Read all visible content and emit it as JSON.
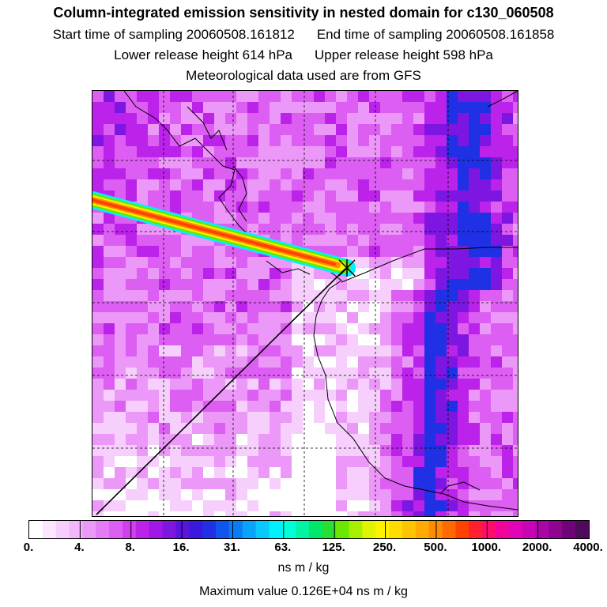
{
  "header": {
    "title": "Column-integrated emission sensitivity in nested domain for c130_060508",
    "start_label": "Start time of sampling 20060508.161812",
    "end_label": "End time of sampling 20060508.161858",
    "lower_label": "Lower release height  614 hPa",
    "upper_label": "Upper release height  598 hPa",
    "met_label": "Meteorological data used are from GFS"
  },
  "colorbar": {
    "tick_labels": [
      "0.",
      "4.",
      "8.",
      "16.",
      "31.",
      "63.",
      "125.",
      "250.",
      "500.",
      "1000.",
      "2000.",
      "4000."
    ],
    "units": "ns m / kg",
    "colors": [
      "#ffffff",
      "#fbe6fd",
      "#f6cffc",
      "#f2b6fb",
      "#ec98f8",
      "#e47cf5",
      "#dc5ef2",
      "#d040ee",
      "#bb22ea",
      "#9f18e6",
      "#7e16e2",
      "#5a14de",
      "#3b18dd",
      "#2030e4",
      "#0f55ee",
      "#0a7cf6",
      "#0aa3fb",
      "#08c8fe",
      "#00f0ff",
      "#00ffd8",
      "#00f4a4",
      "#00e86c",
      "#28e032",
      "#6ae800",
      "#a8ee00",
      "#def400",
      "#fff200",
      "#ffdc00",
      "#ffc400",
      "#ffaa00",
      "#ff8c00",
      "#ff6a00",
      "#ff4200",
      "#ff1f30",
      "#ff0c6c",
      "#f2049a",
      "#e004b6",
      "#c804b4",
      "#ac04a6",
      "#8e0490",
      "#6e0478",
      "#500a5c"
    ]
  },
  "map": {
    "max_value_label": "Maximum value  0.126E+04 ns m / kg",
    "plume_colors": [
      "#00f0ff",
      "#6ae800",
      "#fff200",
      "#ff8c00",
      "#ff4200"
    ],
    "background_colors": [
      "#ffffff",
      "#f6cffc",
      "#ec98f8",
      "#dc5ef2",
      "#bb22ea",
      "#7e16e2",
      "#2030e4"
    ]
  }
}
